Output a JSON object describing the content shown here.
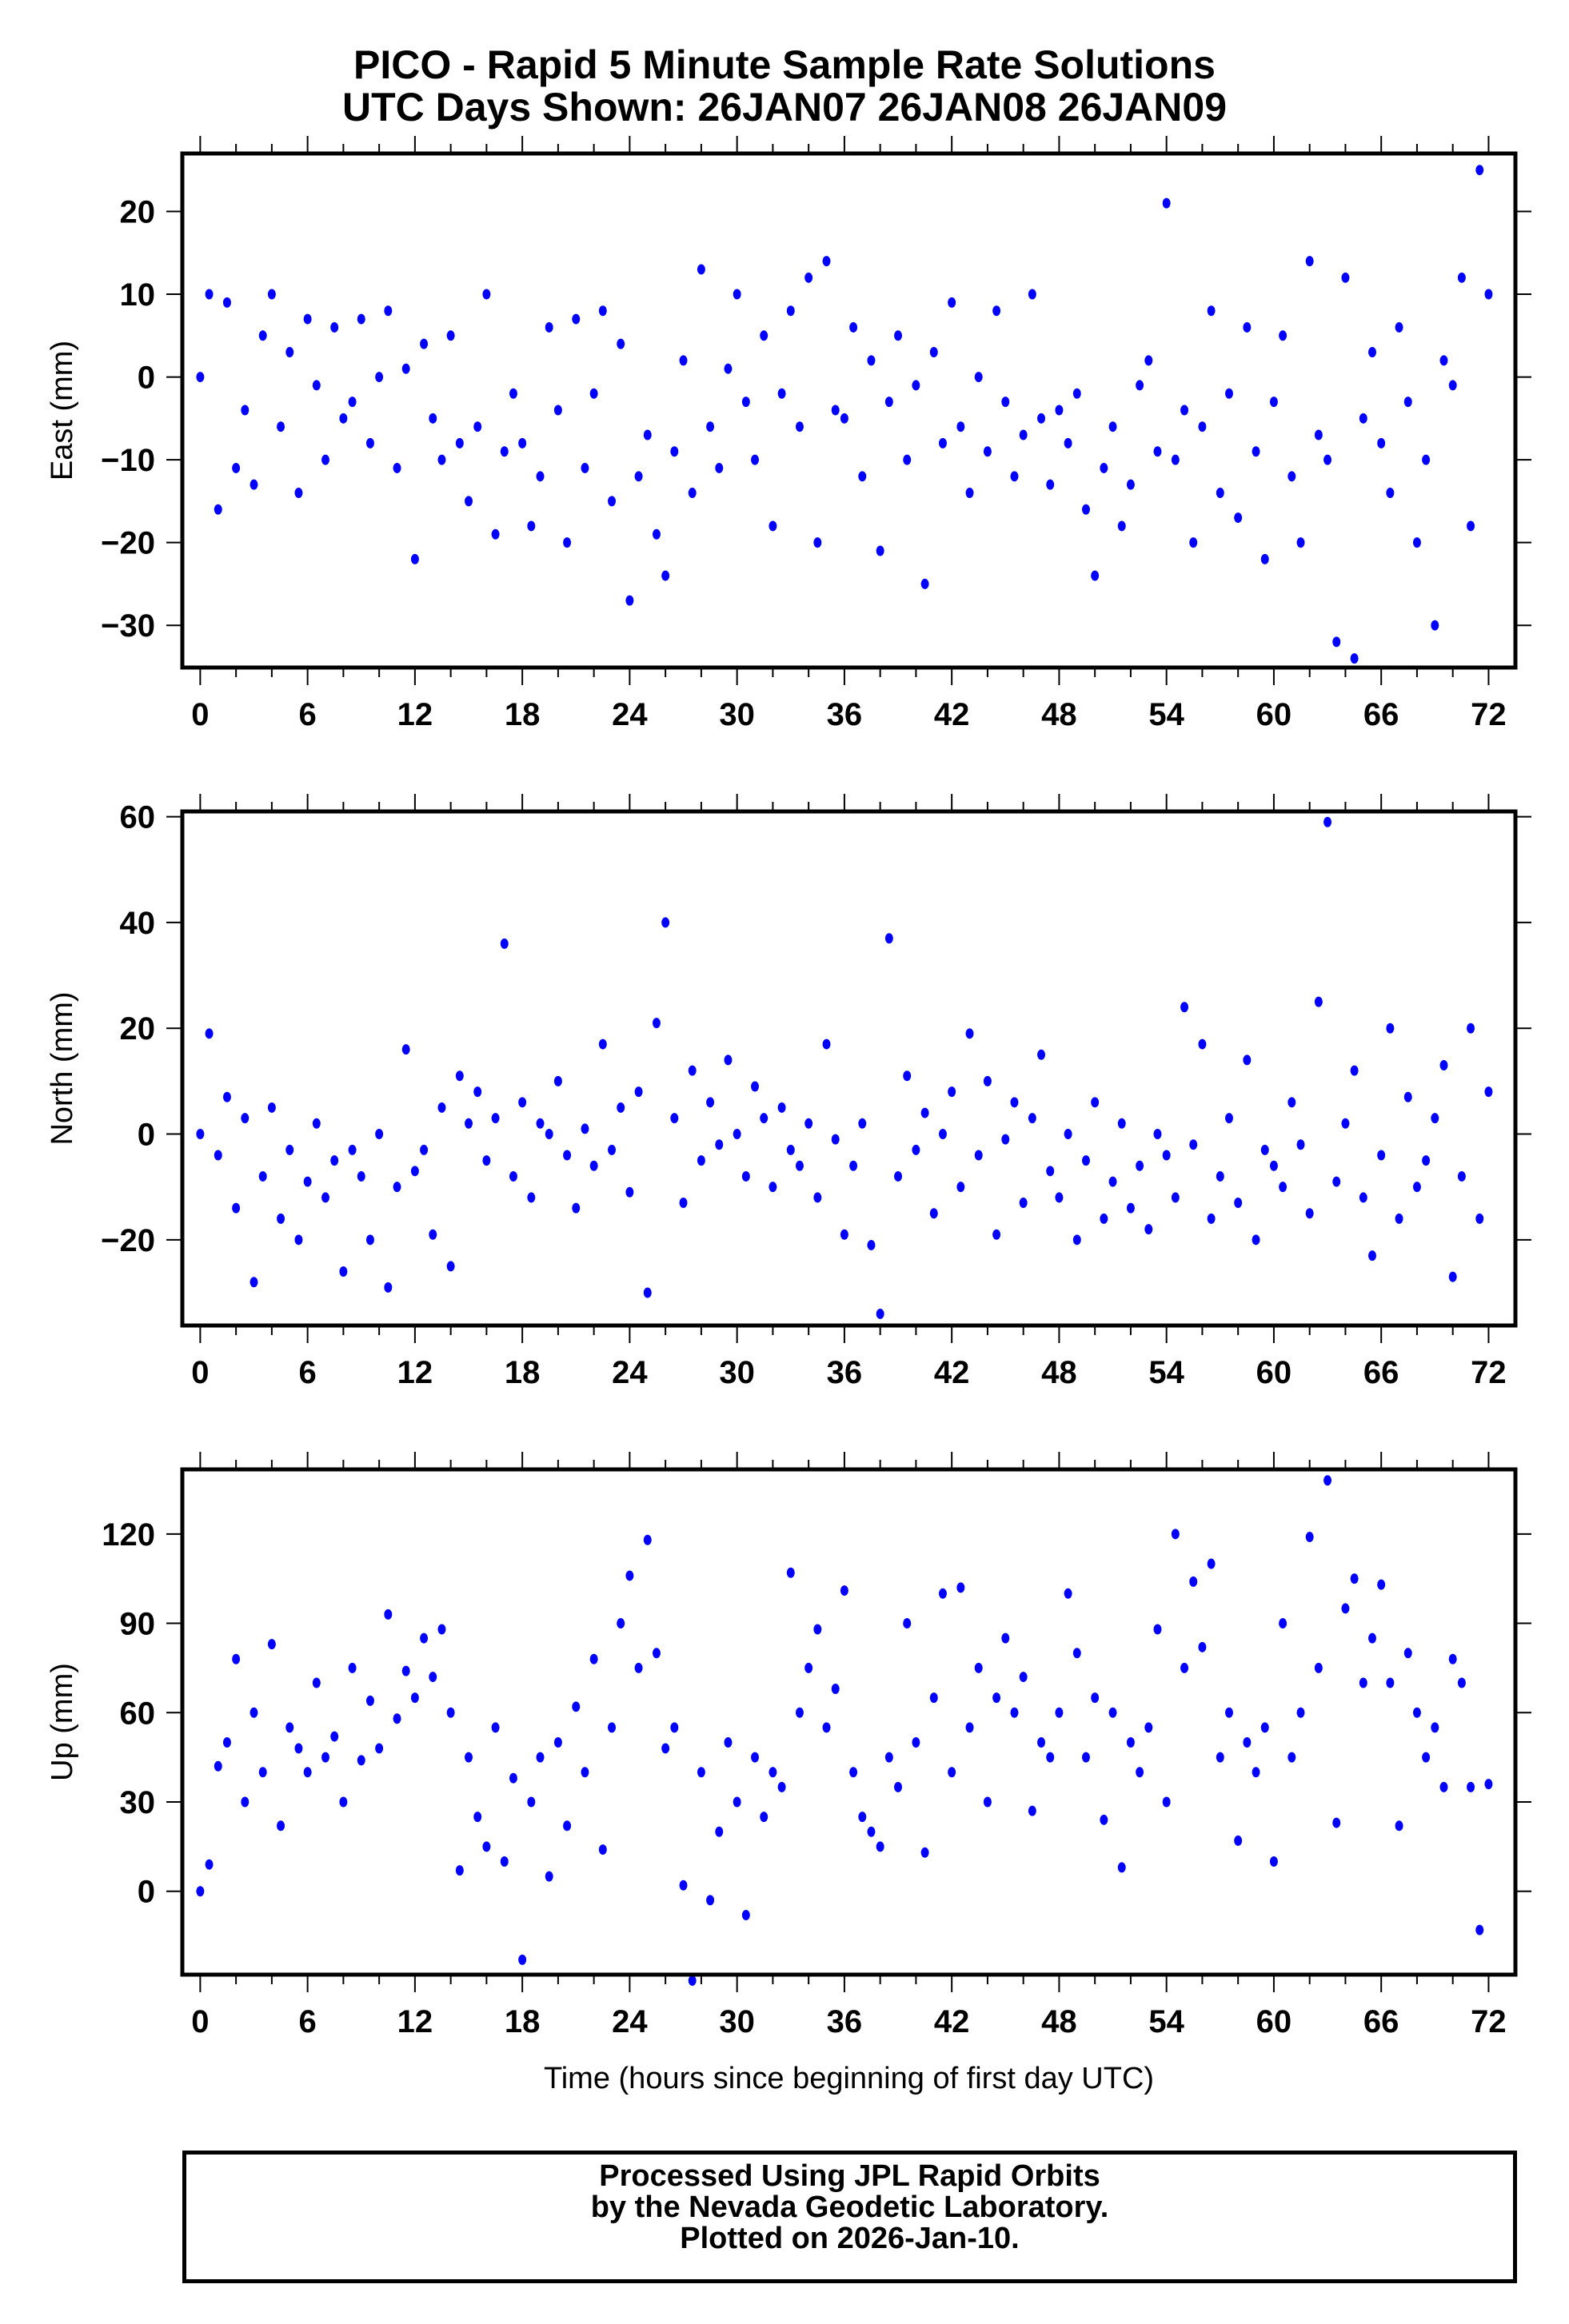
{
  "title": {
    "line1": "PICO - Rapid 5 Minute Sample Rate Solutions",
    "line2": "UTC Days Shown:  26JAN07 26JAN08 26JAN09"
  },
  "footer": {
    "line1": "Processed Using JPL Rapid Orbits",
    "line2": "by the Nevada Geodetic Laboratory.",
    "line3": "Plotted on 2026-Jan-10."
  },
  "chart_data": [
    {
      "type": "scatter",
      "title": "",
      "ylabel": "East (mm)",
      "xlabel": "",
      "xlim": [
        -1,
        73.5
      ],
      "ylim": [
        -35.1,
        27
      ],
      "xticks": [
        0,
        6,
        12,
        18,
        24,
        30,
        36,
        42,
        48,
        54,
        60,
        66,
        72
      ],
      "xtick_labels": [
        "0",
        "6",
        "12",
        "18",
        "24",
        "30",
        "36",
        "42",
        "48",
        "54",
        "60",
        "66",
        "72"
      ],
      "yticks": [
        -30,
        -20,
        -10,
        0,
        10,
        20
      ],
      "ytick_labels": [
        "−30",
        "−20",
        "−10",
        "0",
        "10",
        "20"
      ],
      "x_start": 0,
      "x_step": 0.5,
      "values": [
        0,
        10,
        -16,
        9,
        -11,
        -4,
        -13,
        5,
        10,
        -6,
        3,
        -14,
        7,
        -1,
        -10,
        6,
        -5,
        -3,
        7,
        -8,
        0,
        8,
        -11,
        1,
        -22,
        4,
        -5,
        -10,
        5,
        -8,
        -15,
        -6,
        10,
        -19,
        -9,
        -2,
        -8,
        -18,
        -12,
        6,
        -4,
        -20,
        7,
        -11,
        -2,
        8,
        -15,
        4,
        -27,
        -12,
        -7,
        -19,
        -24,
        -9,
        2,
        -14,
        13,
        -6,
        -11,
        1,
        10,
        -3,
        -10,
        5,
        -18,
        -2,
        8,
        -6,
        12,
        -20,
        14,
        -4,
        -5,
        6,
        -12,
        2,
        -21,
        -3,
        5,
        -10,
        -1,
        -25,
        3,
        -8,
        9,
        -6,
        -14,
        0,
        -9,
        8,
        -3,
        -12,
        -7,
        10,
        -5,
        -13,
        -4,
        -8,
        -2,
        -16,
        -24,
        -11,
        -6,
        -18,
        -13,
        -1,
        2,
        -9,
        21,
        -10,
        -4,
        -20,
        -6,
        8,
        -14,
        -2,
        -17,
        6,
        -9,
        -22,
        -3,
        5,
        -12,
        -20,
        14,
        -7,
        -10,
        -32,
        12,
        -34,
        -5,
        3,
        -8,
        -14,
        6,
        -3,
        -20,
        -10,
        -30,
        2,
        -1,
        12,
        -18,
        25,
        10
      ],
      "color": "#0000ff"
    },
    {
      "type": "scatter",
      "title": "",
      "ylabel": "North (mm)",
      "xlabel": "",
      "xlim": [
        -1,
        73.5
      ],
      "ylim": [
        -36.2,
        61
      ],
      "xticks": [
        0,
        6,
        12,
        18,
        24,
        30,
        36,
        42,
        48,
        54,
        60,
        66,
        72
      ],
      "xtick_labels": [
        "0",
        "6",
        "12",
        "18",
        "24",
        "30",
        "36",
        "42",
        "48",
        "54",
        "60",
        "66",
        "72"
      ],
      "yticks": [
        -20,
        0,
        20,
        40,
        60
      ],
      "ytick_labels": [
        "−20",
        "0",
        "20",
        "40",
        "60"
      ],
      "x_start": 0,
      "x_step": 0.5,
      "values": [
        0,
        19,
        -4,
        7,
        -14,
        3,
        -28,
        -8,
        5,
        -16,
        -3,
        -20,
        -9,
        2,
        -12,
        -5,
        -26,
        -3,
        -8,
        -20,
        0,
        -29,
        -10,
        16,
        -7,
        -3,
        -19,
        5,
        -25,
        11,
        2,
        8,
        -5,
        3,
        36,
        -8,
        6,
        -12,
        2,
        0,
        10,
        -4,
        -14,
        1,
        -6,
        17,
        -3,
        5,
        -11,
        8,
        -30,
        21,
        40,
        3,
        -13,
        12,
        -5,
        6,
        -2,
        14,
        0,
        -8,
        9,
        3,
        -10,
        5,
        -3,
        -6,
        2,
        -12,
        17,
        -1,
        -19,
        -6,
        2,
        -21,
        -34,
        37,
        -8,
        11,
        -3,
        4,
        -15,
        0,
        8,
        -10,
        19,
        -4,
        10,
        -19,
        -1,
        6,
        -13,
        3,
        15,
        -7,
        -12,
        0,
        -20,
        -5,
        6,
        -16,
        -9,
        2,
        -14,
        -6,
        -18,
        0,
        -4,
        -12,
        24,
        -2,
        17,
        -16,
        -8,
        3,
        -13,
        14,
        -20,
        -3,
        -6,
        -10,
        6,
        -2,
        -15,
        25,
        59,
        -9,
        2,
        12,
        -12,
        -23,
        -4,
        20,
        -16,
        7,
        -10,
        -5,
        3,
        13,
        -27,
        -8,
        20,
        -16,
        8
      ],
      "color": "#0000ff"
    },
    {
      "type": "scatter",
      "title": "",
      "ylabel": "Up (mm)",
      "xlabel": "Time (hours since beginning of first day UTC)",
      "xlim": [
        -1,
        73.5
      ],
      "ylim": [
        -28,
        141.7
      ],
      "xticks": [
        0,
        6,
        12,
        18,
        24,
        30,
        36,
        42,
        48,
        54,
        60,
        66,
        72
      ],
      "xtick_labels": [
        "0",
        "6",
        "12",
        "18",
        "24",
        "30",
        "36",
        "42",
        "48",
        "54",
        "60",
        "66",
        "72"
      ],
      "yticks": [
        0,
        30,
        60,
        90,
        120
      ],
      "ytick_labels": [
        "0",
        "30",
        "60",
        "90",
        "120"
      ],
      "x_start": 0,
      "x_step": 0.5,
      "values": [
        0,
        9,
        42,
        50,
        78,
        30,
        60,
        40,
        83,
        22,
        55,
        48,
        40,
        70,
        45,
        52,
        30,
        75,
        44,
        64,
        48,
        93,
        58,
        74,
        65,
        85,
        72,
        88,
        60,
        7,
        45,
        25,
        15,
        55,
        10,
        38,
        -23,
        30,
        45,
        5,
        50,
        22,
        62,
        40,
        78,
        14,
        55,
        90,
        106,
        75,
        118,
        80,
        48,
        55,
        2,
        -30,
        40,
        -3,
        20,
        50,
        30,
        -8,
        45,
        25,
        40,
        35,
        107,
        60,
        75,
        88,
        55,
        68,
        101,
        40,
        25,
        20,
        15,
        45,
        35,
        90,
        50,
        13,
        65,
        100,
        40,
        102,
        55,
        75,
        30,
        65,
        85,
        60,
        72,
        27,
        50,
        45,
        60,
        100,
        80,
        45,
        65,
        24,
        60,
        8,
        50,
        40,
        55,
        88,
        30,
        120,
        75,
        104,
        82,
        110,
        45,
        60,
        17,
        50,
        40,
        55,
        10,
        90,
        45,
        60,
        119,
        75,
        138,
        23,
        95,
        105,
        70,
        85,
        103,
        70,
        22,
        80,
        60,
        45,
        55,
        35,
        78,
        70,
        35,
        -13,
        36
      ],
      "color": "#0000ff"
    }
  ]
}
